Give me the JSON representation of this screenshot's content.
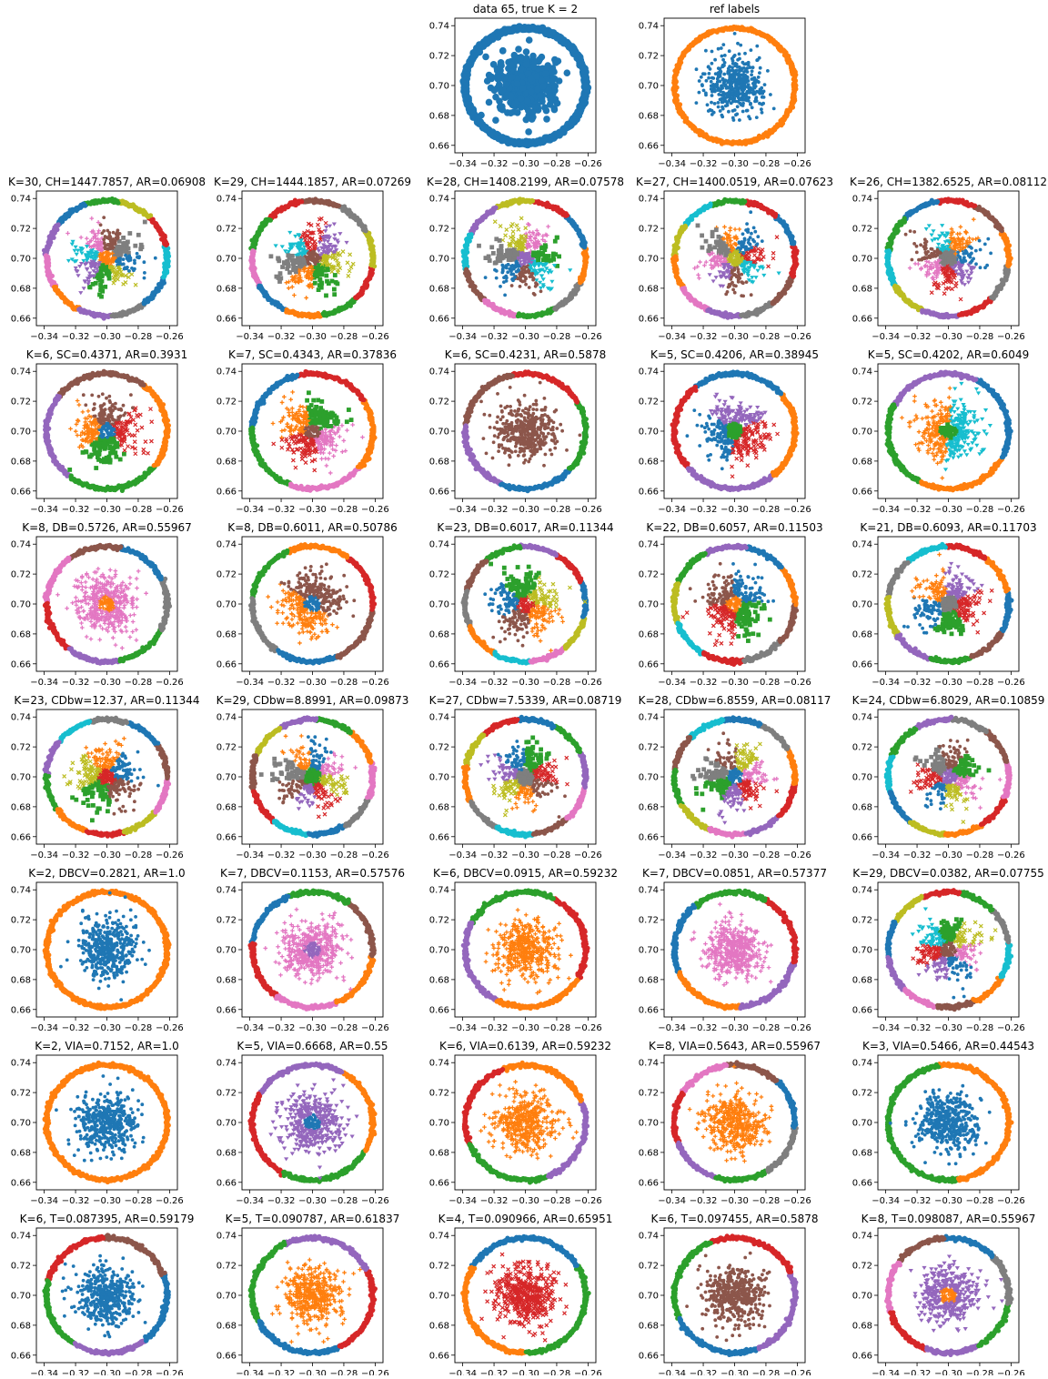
{
  "figure": {
    "xticks": [
      -0.34,
      -0.32,
      -0.3,
      -0.28,
      -0.26
    ],
    "yticks": [
      0.66,
      0.68,
      0.7,
      0.72,
      0.74
    ],
    "xtick_labels": [
      "−0.34",
      "−0.32",
      "−0.30",
      "−0.28",
      "−0.26"
    ],
    "ytick_labels": [
      "0.66",
      "0.68",
      "0.70",
      "0.72",
      "0.74"
    ],
    "palette": [
      "#1f77b4",
      "#ff7f0e",
      "#2ca02c",
      "#d62728",
      "#9467bd",
      "#8c564b",
      "#e377c2",
      "#7f7f7f",
      "#bcbd22",
      "#17becf"
    ]
  },
  "chart_data": [
    {
      "type": "scatter",
      "row": 0,
      "col": 2,
      "title": "data 65, true K = 2",
      "k": 1,
      "ring_colors": [
        0
      ],
      "center_colors": [
        0
      ],
      "marker": "big"
    },
    {
      "type": "scatter",
      "row": 0,
      "col": 3,
      "title": "ref labels",
      "k": 2,
      "ring_colors": [
        1
      ],
      "center_colors": [
        0
      ]
    },
    {
      "type": "scatter",
      "row": 1,
      "col": 0,
      "title": "K=30, CH=1447.7857, AR=0.06908",
      "k": 30,
      "ring_colors": [
        7,
        0,
        9,
        3,
        8,
        2,
        0,
        4,
        6,
        1,
        4
      ],
      "center_colors": [
        1,
        0,
        7,
        5,
        6,
        9,
        4,
        2,
        8
      ]
    },
    {
      "type": "scatter",
      "row": 1,
      "col": 1,
      "title": "K=29, CH=1444.1857, AR=0.07269",
      "k": 29,
      "ring_colors": [
        0,
        1,
        2,
        3,
        8,
        7,
        5,
        3,
        2,
        6
      ],
      "center_colors": [
        5,
        8,
        4,
        3,
        9,
        7,
        1,
        2
      ]
    },
    {
      "type": "scatter",
      "row": 1,
      "col": 2,
      "title": "K=28, CH=1408.2199, AR=0.07578",
      "k": 28,
      "ring_colors": [
        6,
        2,
        7,
        1,
        0,
        3,
        8,
        4,
        9,
        5
      ],
      "center_colors": [
        4,
        2,
        6,
        8,
        7,
        0,
        5,
        9
      ]
    },
    {
      "type": "scatter",
      "row": 1,
      "col": 3,
      "title": "K=27, CH=1400.0519, AR=0.07623",
      "k": 27,
      "ring_colors": [
        0,
        3,
        2,
        9,
        8,
        1,
        6,
        4,
        7,
        5,
        3
      ],
      "center_colors": [
        8,
        1,
        7,
        6,
        4,
        5,
        9,
        3,
        0
      ]
    },
    {
      "type": "scatter",
      "row": 1,
      "col": 4,
      "title": "K=26, CH=1382.6525, AR=0.08112",
      "k": 26,
      "ring_colors": [
        3,
        0,
        2,
        9,
        8,
        4,
        3,
        7,
        1,
        5
      ],
      "center_colors": [
        7,
        0,
        1,
        9,
        5,
        6,
        3,
        4
      ]
    },
    {
      "type": "scatter",
      "row": 2,
      "col": 0,
      "title": "K=6, SC=0.4371, AR=0.3931",
      "k": 6,
      "ring_colors": [
        2,
        1,
        5,
        4
      ],
      "center_colors": [
        0,
        2,
        3,
        5,
        1
      ]
    },
    {
      "type": "scatter",
      "row": 2,
      "col": 1,
      "title": "K=7, SC=0.4343, AR=0.37836",
      "k": 7,
      "ring_colors": [
        3,
        0,
        2,
        6,
        1
      ],
      "center_colors": [
        5,
        2,
        1,
        3,
        6
      ]
    },
    {
      "type": "scatter",
      "row": 2,
      "col": 2,
      "title": "K=6, SC=0.4231, AR=0.5878",
      "k": 6,
      "ring_colors": [
        2,
        3,
        5,
        4,
        0
      ],
      "center_colors": [
        5
      ]
    },
    {
      "type": "scatter",
      "row": 2,
      "col": 3,
      "title": "K=5, SC=0.4206, AR=0.38945",
      "k": 5,
      "ring_colors": [
        1,
        0,
        3,
        4
      ],
      "center_colors": [
        2,
        0,
        3,
        4
      ]
    },
    {
      "type": "scatter",
      "row": 2,
      "col": 4,
      "title": "K=5, SC=0.4202, AR=0.6049",
      "k": 5,
      "ring_colors": [
        1,
        0,
        4,
        2
      ],
      "center_colors": [
        2,
        1,
        9
      ]
    },
    {
      "type": "scatter",
      "row": 3,
      "col": 0,
      "title": "K=8, DB=0.5726, AR=0.55967",
      "k": 8,
      "ring_colors": [
        6,
        3,
        4,
        2,
        7,
        0,
        5
      ],
      "center_colors": [
        1,
        6
      ]
    },
    {
      "type": "scatter",
      "row": 3,
      "col": 1,
      "title": "K=8, DB=0.6011, AR=0.50786",
      "k": 8,
      "ring_colors": [
        3,
        1,
        2,
        7,
        0,
        5
      ],
      "center_colors": [
        0,
        1,
        5
      ]
    },
    {
      "type": "scatter",
      "row": 3,
      "col": 2,
      "title": "K=23, DB=0.6017, AR=0.11344",
      "k": 23,
      "ring_colors": [
        7,
        1,
        9,
        6,
        8,
        0,
        3,
        4,
        2,
        5
      ],
      "center_colors": [
        3,
        5,
        1,
        8,
        2,
        0
      ]
    },
    {
      "type": "scatter",
      "row": 3,
      "col": 3,
      "title": "K=22, DB=0.6057, AR=0.11503",
      "k": 22,
      "ring_colors": [
        1,
        0,
        4,
        2,
        8,
        9,
        3,
        7,
        5
      ],
      "center_colors": [
        1,
        3,
        2,
        0,
        5
      ]
    },
    {
      "type": "scatter",
      "row": 3,
      "col": 4,
      "title": "K=21, DB=0.6093, AR=0.11703",
      "k": 21,
      "ring_colors": [
        0,
        1,
        3,
        9,
        7,
        8,
        4,
        2,
        5
      ],
      "center_colors": [
        7,
        0,
        2,
        3,
        4,
        1
      ]
    },
    {
      "type": "scatter",
      "row": 4,
      "col": 0,
      "title": "K=23, CDbw=12.37, AR=0.11344",
      "k": 23,
      "ring_colors": [
        0,
        7,
        9,
        4,
        2,
        1,
        3,
        8,
        6,
        5
      ],
      "center_colors": [
        3,
        1,
        8,
        2,
        5,
        0
      ]
    },
    {
      "type": "scatter",
      "row": 4,
      "col": 1,
      "title": "K=29, CDbw=8.8991, AR=0.09873",
      "k": 29,
      "ring_colors": [
        3,
        9,
        0,
        7,
        6,
        1,
        2,
        4,
        8,
        5
      ],
      "center_colors": [
        2,
        5,
        4,
        3,
        8,
        6,
        0,
        1,
        7
      ]
    },
    {
      "type": "scatter",
      "row": 4,
      "col": 2,
      "title": "K=27, CDbw=7.5339, AR=0.08719",
      "k": 27,
      "ring_colors": [
        7,
        9,
        5,
        6,
        4,
        2,
        0,
        3,
        8,
        1
      ],
      "center_colors": [
        7,
        0,
        4,
        8,
        1,
        5,
        3,
        2
      ]
    },
    {
      "type": "scatter",
      "row": 4,
      "col": 3,
      "title": "K=28, CDbw=6.8559, AR=0.08117",
      "k": 28,
      "ring_colors": [
        3,
        1,
        7,
        0,
        9,
        5,
        2,
        8,
        6,
        4
      ],
      "center_colors": [
        0,
        2,
        4,
        3,
        6,
        8,
        5,
        7
      ]
    },
    {
      "type": "scatter",
      "row": 4,
      "col": 4,
      "title": "K=24, CDbw=6.8029, AR=0.10859",
      "k": 24,
      "ring_colors": [
        6,
        5,
        7,
        4,
        2,
        9,
        0,
        8,
        1,
        3
      ],
      "center_colors": [
        4,
        3,
        0,
        8,
        6,
        2,
        5,
        7
      ]
    },
    {
      "type": "scatter",
      "row": 5,
      "col": 0,
      "title": "K=2, DBCV=0.2821, AR=1.0",
      "k": 2,
      "ring_colors": [
        1
      ],
      "center_colors": [
        0
      ]
    },
    {
      "type": "scatter",
      "row": 5,
      "col": 1,
      "title": "K=7, DBCV=0.1153, AR=0.57576",
      "k": 7,
      "ring_colors": [
        1,
        5,
        2,
        0,
        3,
        6
      ],
      "center_colors": [
        4,
        6
      ]
    },
    {
      "type": "scatter",
      "row": 5,
      "col": 2,
      "title": "K=6, DBCV=0.0915, AR=0.59232",
      "k": 6,
      "ring_colors": [
        1,
        3,
        2,
        4
      ],
      "center_colors": [
        1
      ]
    },
    {
      "type": "scatter",
      "row": 5,
      "col": 3,
      "title": "K=7, DBCV=0.0851, AR=0.57377",
      "k": 7,
      "ring_colors": [
        4,
        3,
        2,
        0,
        1
      ],
      "center_colors": [
        6
      ]
    },
    {
      "type": "scatter",
      "row": 5,
      "col": 4,
      "title": "K=29, DBCV=0.0382, AR=0.07755",
      "k": 29,
      "ring_colors": [
        1,
        9,
        7,
        2,
        3,
        8,
        0,
        4,
        6,
        5
      ],
      "center_colors": [
        5,
        9,
        3,
        4,
        0,
        6,
        8,
        2
      ]
    },
    {
      "type": "scatter",
      "row": 6,
      "col": 0,
      "title": "K=2, VIA=0.7152, AR=1.0",
      "k": 2,
      "ring_colors": [
        1
      ],
      "center_colors": [
        0
      ]
    },
    {
      "type": "scatter",
      "row": 6,
      "col": 1,
      "title": "K=5, VIA=0.6668, AR=0.55",
      "k": 5,
      "ring_colors": [
        3,
        2,
        1,
        4
      ],
      "center_colors": [
        0,
        4
      ]
    },
    {
      "type": "scatter",
      "row": 6,
      "col": 2,
      "title": "K=6, VIA=0.6139, AR=0.59232",
      "k": 6,
      "ring_colors": [
        1,
        3,
        2,
        4
      ],
      "center_colors": [
        1
      ]
    },
    {
      "type": "scatter",
      "row": 6,
      "col": 3,
      "title": "K=8, VIA=0.5643, AR=0.55967",
      "k": 8,
      "ring_colors": [
        6,
        3,
        4,
        2,
        7,
        0,
        5
      ],
      "center_colors": [
        1
      ]
    },
    {
      "type": "scatter",
      "row": 6,
      "col": 4,
      "title": "K=3, VIA=0.5466, AR=0.44543",
      "k": 3,
      "ring_colors": [
        1,
        2
      ],
      "center_colors": [
        0
      ]
    },
    {
      "type": "scatter",
      "row": 7,
      "col": 0,
      "title": "K=6, T=0.087395, AR=0.59179",
      "k": 6,
      "ring_colors": [
        5,
        3,
        2,
        4,
        0
      ],
      "center_colors": [
        0
      ]
    },
    {
      "type": "scatter",
      "row": 7,
      "col": 1,
      "title": "K=5, T=0.090787, AR=0.61837",
      "k": 5,
      "ring_colors": [
        0,
        3,
        4,
        2
      ],
      "center_colors": [
        1
      ]
    },
    {
      "type": "scatter",
      "row": 7,
      "col": 2,
      "title": "K=4, T=0.090966, AR=0.65951",
      "k": 4,
      "ring_colors": [
        1,
        2,
        0
      ],
      "center_colors": [
        3
      ]
    },
    {
      "type": "scatter",
      "row": 7,
      "col": 3,
      "title": "K=6, T=0.097455, AR=0.5878",
      "k": 6,
      "ring_colors": [
        3,
        2,
        0,
        4
      ],
      "center_colors": [
        5
      ]
    },
    {
      "type": "scatter",
      "row": 7,
      "col": 4,
      "title": "K=8, T=0.098087, AR=0.55967",
      "k": 8,
      "ring_colors": [
        5,
        6,
        3,
        4,
        2,
        7,
        0
      ],
      "center_colors": [
        1,
        4
      ]
    }
  ]
}
